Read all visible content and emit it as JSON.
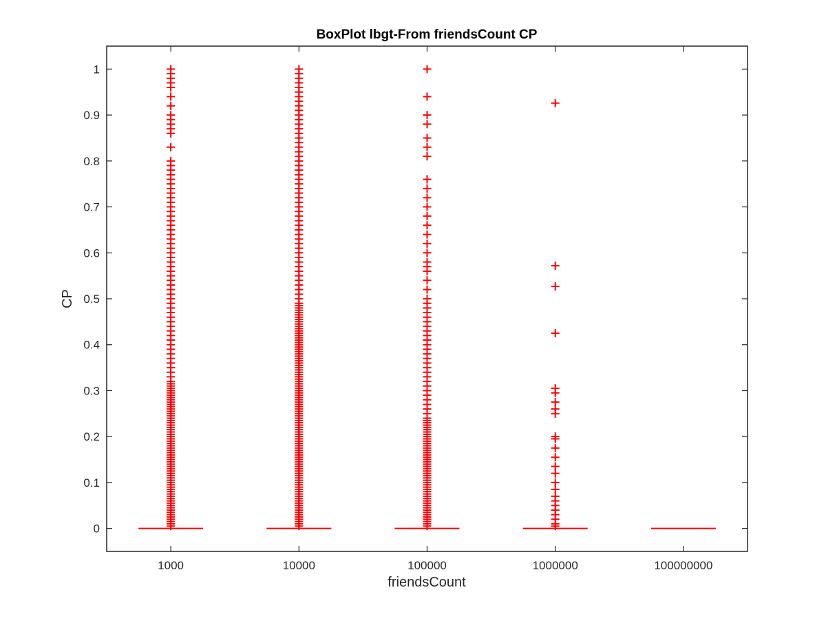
{
  "chart_data": {
    "type": "box",
    "title": "BoxPlot lbgt-From friendsCount CP",
    "xlabel": "friendsCount",
    "ylabel": "CP",
    "categories": [
      "1000",
      "10000",
      "100000",
      "1000000",
      "100000000"
    ],
    "ylim": [
      -0.05,
      1.05
    ],
    "yticks": [
      0,
      0.1,
      0.2,
      0.3,
      0.4,
      0.5,
      0.6,
      0.7,
      0.8,
      0.9,
      1
    ],
    "ytick_labels": [
      "0",
      "0.1",
      "0.2",
      "0.3",
      "0.4",
      "0.5",
      "0.6",
      "0.7",
      "0.8",
      "0.9",
      "1"
    ],
    "grid": false,
    "box_color": "#ff0000",
    "outlier_marker": "+",
    "boxes": [
      {
        "category": "1000",
        "median": 0,
        "q1": 0,
        "q3": 0,
        "whisker_low": 0,
        "whisker_high": 0,
        "outliers": [
          0.005,
          0.01,
          0.015,
          0.02,
          0.025,
          0.03,
          0.035,
          0.04,
          0.045,
          0.05,
          0.055,
          0.06,
          0.065,
          0.07,
          0.075,
          0.08,
          0.085,
          0.09,
          0.095,
          0.1,
          0.105,
          0.11,
          0.115,
          0.12,
          0.125,
          0.13,
          0.135,
          0.14,
          0.145,
          0.15,
          0.155,
          0.16,
          0.165,
          0.17,
          0.175,
          0.18,
          0.185,
          0.19,
          0.195,
          0.2,
          0.205,
          0.21,
          0.215,
          0.22,
          0.225,
          0.23,
          0.235,
          0.24,
          0.245,
          0.25,
          0.255,
          0.26,
          0.265,
          0.27,
          0.275,
          0.28,
          0.285,
          0.29,
          0.295,
          0.3,
          0.305,
          0.31,
          0.315,
          0.32,
          0.33,
          0.34,
          0.35,
          0.36,
          0.37,
          0.38,
          0.39,
          0.4,
          0.41,
          0.42,
          0.43,
          0.44,
          0.45,
          0.46,
          0.47,
          0.48,
          0.49,
          0.5,
          0.51,
          0.52,
          0.53,
          0.54,
          0.55,
          0.56,
          0.57,
          0.58,
          0.59,
          0.6,
          0.61,
          0.62,
          0.63,
          0.64,
          0.65,
          0.66,
          0.67,
          0.68,
          0.69,
          0.7,
          0.71,
          0.72,
          0.73,
          0.74,
          0.75,
          0.76,
          0.77,
          0.78,
          0.79,
          0.8,
          0.83,
          0.86,
          0.87,
          0.88,
          0.89,
          0.9,
          0.92,
          0.94,
          0.96,
          0.97,
          0.98,
          0.99,
          1
        ]
      },
      {
        "category": "10000",
        "median": 0,
        "q1": 0,
        "q3": 0,
        "whisker_low": 0,
        "whisker_high": 0,
        "outliers": [
          0.005,
          0.01,
          0.015,
          0.02,
          0.025,
          0.03,
          0.035,
          0.04,
          0.045,
          0.05,
          0.055,
          0.06,
          0.065,
          0.07,
          0.075,
          0.08,
          0.085,
          0.09,
          0.095,
          0.1,
          0.105,
          0.11,
          0.115,
          0.12,
          0.125,
          0.13,
          0.135,
          0.14,
          0.145,
          0.15,
          0.155,
          0.16,
          0.165,
          0.17,
          0.175,
          0.18,
          0.185,
          0.19,
          0.195,
          0.2,
          0.205,
          0.21,
          0.215,
          0.22,
          0.225,
          0.23,
          0.235,
          0.24,
          0.245,
          0.25,
          0.255,
          0.26,
          0.265,
          0.27,
          0.275,
          0.28,
          0.285,
          0.29,
          0.295,
          0.3,
          0.305,
          0.31,
          0.315,
          0.32,
          0.325,
          0.33,
          0.335,
          0.34,
          0.345,
          0.35,
          0.355,
          0.36,
          0.365,
          0.37,
          0.375,
          0.38,
          0.385,
          0.39,
          0.395,
          0.4,
          0.405,
          0.41,
          0.415,
          0.42,
          0.425,
          0.43,
          0.435,
          0.44,
          0.445,
          0.45,
          0.455,
          0.46,
          0.465,
          0.47,
          0.475,
          0.48,
          0.485,
          0.49,
          0.5,
          0.51,
          0.52,
          0.53,
          0.54,
          0.55,
          0.56,
          0.57,
          0.58,
          0.59,
          0.6,
          0.61,
          0.62,
          0.63,
          0.64,
          0.65,
          0.66,
          0.67,
          0.68,
          0.69,
          0.7,
          0.71,
          0.72,
          0.73,
          0.74,
          0.75,
          0.76,
          0.77,
          0.78,
          0.79,
          0.8,
          0.81,
          0.82,
          0.83,
          0.84,
          0.85,
          0.86,
          0.87,
          0.88,
          0.89,
          0.9,
          0.91,
          0.92,
          0.93,
          0.94,
          0.95,
          0.96,
          0.97,
          0.98,
          0.99,
          1
        ]
      },
      {
        "category": "100000",
        "median": 0,
        "q1": 0,
        "q3": 0,
        "whisker_low": 0,
        "whisker_high": 0,
        "outliers": [
          0.005,
          0.01,
          0.015,
          0.02,
          0.025,
          0.03,
          0.035,
          0.04,
          0.045,
          0.05,
          0.055,
          0.06,
          0.065,
          0.07,
          0.075,
          0.08,
          0.085,
          0.09,
          0.095,
          0.1,
          0.105,
          0.11,
          0.115,
          0.12,
          0.125,
          0.13,
          0.135,
          0.14,
          0.145,
          0.15,
          0.155,
          0.16,
          0.165,
          0.17,
          0.175,
          0.18,
          0.185,
          0.19,
          0.195,
          0.2,
          0.205,
          0.21,
          0.215,
          0.22,
          0.225,
          0.23,
          0.235,
          0.24,
          0.25,
          0.26,
          0.27,
          0.28,
          0.29,
          0.3,
          0.31,
          0.32,
          0.33,
          0.34,
          0.35,
          0.36,
          0.37,
          0.38,
          0.39,
          0.4,
          0.41,
          0.42,
          0.43,
          0.44,
          0.45,
          0.46,
          0.47,
          0.48,
          0.49,
          0.5,
          0.52,
          0.54,
          0.56,
          0.57,
          0.58,
          0.6,
          0.62,
          0.64,
          0.66,
          0.68,
          0.7,
          0.72,
          0.74,
          0.76,
          0.81,
          0.83,
          0.85,
          0.88,
          0.9,
          0.94,
          1
        ]
      },
      {
        "category": "1000000",
        "median": 0,
        "q1": 0,
        "q3": 0,
        "whisker_low": 0,
        "whisker_high": 0,
        "outliers": [
          0.005,
          0.01,
          0.02,
          0.03,
          0.04,
          0.05,
          0.06,
          0.07,
          0.085,
          0.1,
          0.12,
          0.135,
          0.155,
          0.175,
          0.195,
          0.2,
          0.25,
          0.26,
          0.275,
          0.295,
          0.305,
          0.425,
          0.527,
          0.572,
          0.926
        ]
      },
      {
        "category": "100000000",
        "median": 0,
        "q1": 0,
        "q3": 0,
        "whisker_low": 0,
        "whisker_high": 0,
        "outliers": []
      }
    ]
  }
}
